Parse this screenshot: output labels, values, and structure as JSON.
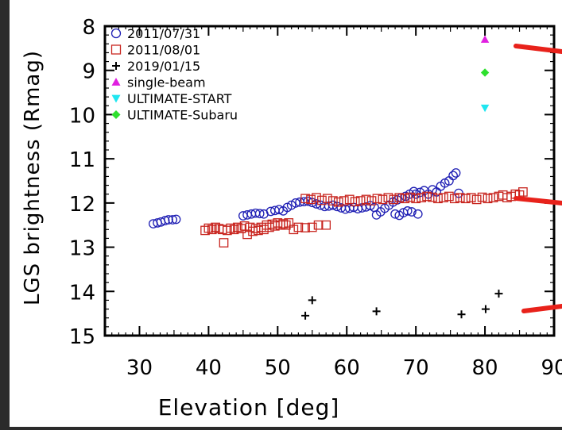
{
  "chart_data": {
    "type": "scatter",
    "xlabel": "Elevation [deg]",
    "ylabel": "LGS brightness (Rmag)",
    "xlim": [
      25,
      90
    ],
    "ylim": [
      15,
      8
    ],
    "y_inverted": true,
    "xticks": [
      30,
      40,
      50,
      60,
      70,
      80,
      90
    ],
    "yticks": [
      8,
      9,
      10,
      11,
      12,
      13,
      14,
      15
    ],
    "grid": false,
    "legend_position": "top-left",
    "series": [
      {
        "name": "2011/07/31",
        "marker": "circle-open",
        "color": "#1f1fb4",
        "points": [
          [
            32.0,
            12.47
          ],
          [
            32.6,
            12.45
          ],
          [
            33.1,
            12.43
          ],
          [
            33.7,
            12.4
          ],
          [
            34.2,
            12.38
          ],
          [
            34.8,
            12.38
          ],
          [
            35.3,
            12.37
          ],
          [
            45.0,
            12.29
          ],
          [
            45.6,
            12.27
          ],
          [
            46.2,
            12.25
          ],
          [
            46.8,
            12.23
          ],
          [
            47.4,
            12.24
          ],
          [
            48.0,
            12.25
          ],
          [
            49.0,
            12.19
          ],
          [
            49.6,
            12.17
          ],
          [
            50.2,
            12.15
          ],
          [
            50.8,
            12.18
          ],
          [
            51.4,
            12.1
          ],
          [
            52.0,
            12.05
          ],
          [
            52.6,
            12.0
          ],
          [
            53.2,
            11.98
          ],
          [
            53.8,
            11.97
          ],
          [
            54.4,
            11.96
          ],
          [
            55.0,
            11.99
          ],
          [
            55.6,
            12.02
          ],
          [
            56.2,
            12.05
          ],
          [
            56.8,
            12.08
          ],
          [
            57.4,
            12.07
          ],
          [
            58.0,
            12.05
          ],
          [
            58.6,
            12.08
          ],
          [
            59.2,
            12.11
          ],
          [
            59.8,
            12.14
          ],
          [
            60.4,
            12.12
          ],
          [
            61.0,
            12.1
          ],
          [
            61.6,
            12.13
          ],
          [
            62.2,
            12.11
          ],
          [
            62.8,
            12.09
          ],
          [
            63.4,
            12.06
          ],
          [
            64.0,
            12.1
          ],
          [
            64.3,
            12.27
          ],
          [
            64.9,
            12.2
          ],
          [
            65.5,
            12.12
          ],
          [
            66.1,
            12.05
          ],
          [
            66.7,
            11.98
          ],
          [
            67.0,
            12.25
          ],
          [
            67.3,
            11.93
          ],
          [
            67.6,
            12.28
          ],
          [
            67.9,
            11.88
          ],
          [
            68.2,
            12.22
          ],
          [
            68.5,
            11.85
          ],
          [
            68.8,
            12.18
          ],
          [
            69.1,
            11.8
          ],
          [
            69.4,
            12.2
          ],
          [
            69.7,
            11.74
          ],
          [
            70.0,
            11.8
          ],
          [
            70.3,
            12.25
          ],
          [
            70.6,
            11.76
          ],
          [
            71.2,
            11.72
          ],
          [
            71.8,
            11.8
          ],
          [
            72.4,
            11.7
          ],
          [
            73.0,
            11.75
          ],
          [
            73.6,
            11.62
          ],
          [
            74.2,
            11.55
          ],
          [
            74.8,
            11.5
          ],
          [
            75.4,
            11.38
          ],
          [
            75.8,
            11.32
          ],
          [
            76.2,
            11.78
          ]
        ]
      },
      {
        "name": "2011/08/01",
        "marker": "square-open",
        "color": "#c8251f",
        "points": [
          [
            39.5,
            12.62
          ],
          [
            40.0,
            12.57
          ],
          [
            40.5,
            12.6
          ],
          [
            41.0,
            12.55
          ],
          [
            41.5,
            12.58
          ],
          [
            42.0,
            12.6
          ],
          [
            42.2,
            12.9
          ],
          [
            42.7,
            12.62
          ],
          [
            43.2,
            12.57
          ],
          [
            43.7,
            12.6
          ],
          [
            44.2,
            12.55
          ],
          [
            44.7,
            12.58
          ],
          [
            45.2,
            12.52
          ],
          [
            45.6,
            12.71
          ],
          [
            46.0,
            12.55
          ],
          [
            46.4,
            12.64
          ],
          [
            46.8,
            12.58
          ],
          [
            47.2,
            12.62
          ],
          [
            47.6,
            12.55
          ],
          [
            48.0,
            12.6
          ],
          [
            48.4,
            12.5
          ],
          [
            48.8,
            12.55
          ],
          [
            49.2,
            12.48
          ],
          [
            49.6,
            12.52
          ],
          [
            50.0,
            12.45
          ],
          [
            50.4,
            12.5
          ],
          [
            50.8,
            12.47
          ],
          [
            51.2,
            12.5
          ],
          [
            51.6,
            12.45
          ],
          [
            52.3,
            12.6
          ],
          [
            53.0,
            12.55
          ],
          [
            54.0,
            12.56
          ],
          [
            55.0,
            12.55
          ],
          [
            55.9,
            12.5
          ],
          [
            57.0,
            12.5
          ],
          [
            54.0,
            11.9
          ],
          [
            54.8,
            11.92
          ],
          [
            55.6,
            11.88
          ],
          [
            56.4,
            11.94
          ],
          [
            57.2,
            11.9
          ],
          [
            58.0,
            11.95
          ],
          [
            58.8,
            11.98
          ],
          [
            59.6,
            11.95
          ],
          [
            60.4,
            11.92
          ],
          [
            61.2,
            11.97
          ],
          [
            62.0,
            11.95
          ],
          [
            62.8,
            11.92
          ],
          [
            63.6,
            11.95
          ],
          [
            64.4,
            11.9
          ],
          [
            65.2,
            11.92
          ],
          [
            66.0,
            11.88
          ],
          [
            66.8,
            11.92
          ],
          [
            67.6,
            11.88
          ],
          [
            68.4,
            11.9
          ],
          [
            69.2,
            11.87
          ],
          [
            70.0,
            11.9
          ],
          [
            70.8,
            11.88
          ],
          [
            71.6,
            11.85
          ],
          [
            72.4,
            11.87
          ],
          [
            73.2,
            11.9
          ],
          [
            74.0,
            11.88
          ],
          [
            74.8,
            11.85
          ],
          [
            75.6,
            11.9
          ],
          [
            76.4,
            11.88
          ],
          [
            77.2,
            11.9
          ],
          [
            78.0,
            11.88
          ],
          [
            78.8,
            11.92
          ],
          [
            79.6,
            11.87
          ],
          [
            80.4,
            11.9
          ],
          [
            81.2,
            11.88
          ],
          [
            82.0,
            11.85
          ],
          [
            82.6,
            11.82
          ],
          [
            83.2,
            11.88
          ],
          [
            83.8,
            11.85
          ],
          [
            84.4,
            11.8
          ],
          [
            85.0,
            11.82
          ],
          [
            85.5,
            11.75
          ]
        ]
      },
      {
        "name": "2019/01/15",
        "marker": "plus",
        "color": "#000000",
        "points": [
          [
            54.0,
            14.55
          ],
          [
            55.0,
            14.2
          ],
          [
            64.3,
            14.45
          ],
          [
            76.6,
            14.52
          ],
          [
            80.1,
            14.4
          ],
          [
            82.0,
            14.05
          ]
        ]
      },
      {
        "name": "single-beam",
        "marker": "triangle-up",
        "color": "#e01fe0",
        "points": [
          [
            80.0,
            8.3
          ]
        ]
      },
      {
        "name": "ULTIMATE-START",
        "marker": "triangle-down",
        "color": "#1fe6f0",
        "points": [
          [
            80.0,
            9.85
          ]
        ]
      },
      {
        "name": "ULTIMATE-Subaru",
        "marker": "diamond",
        "color": "#2ee02e",
        "points": [
          [
            80.0,
            9.05
          ]
        ]
      }
    ]
  }
}
